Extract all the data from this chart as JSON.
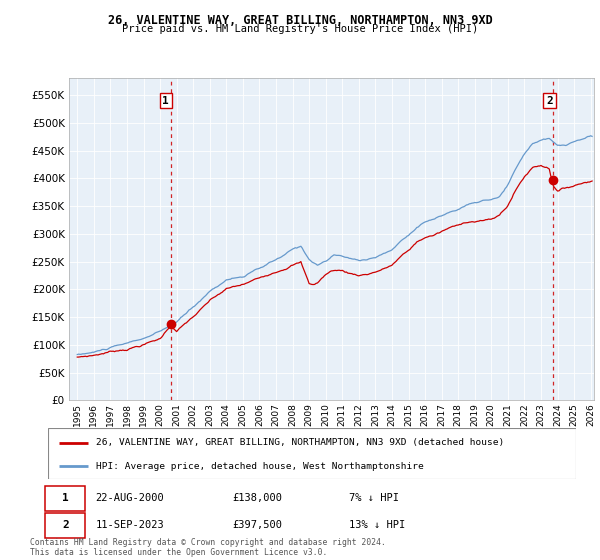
{
  "title": "26, VALENTINE WAY, GREAT BILLING, NORTHAMPTON, NN3 9XD",
  "subtitle": "Price paid vs. HM Land Registry's House Price Index (HPI)",
  "legend_label_red": "26, VALENTINE WAY, GREAT BILLING, NORTHAMPTON, NN3 9XD (detached house)",
  "legend_label_blue": "HPI: Average price, detached house, West Northamptonshire",
  "footnote": "Contains HM Land Registry data © Crown copyright and database right 2024.\nThis data is licensed under the Open Government Licence v3.0.",
  "annotation1_date": "22-AUG-2000",
  "annotation1_price": "£138,000",
  "annotation1_hpi": "7% ↓ HPI",
  "annotation2_date": "11-SEP-2023",
  "annotation2_price": "£397,500",
  "annotation2_hpi": "13% ↓ HPI",
  "red_color": "#cc0000",
  "blue_color": "#6699cc",
  "chart_bg": "#e8f0f8",
  "grid_color": "#ffffff",
  "ylim": [
    0,
    580000
  ],
  "yticks": [
    0,
    50000,
    100000,
    150000,
    200000,
    250000,
    300000,
    350000,
    400000,
    450000,
    500000,
    550000
  ],
  "sale1_x": 2000.644,
  "sale1_y": 138000,
  "sale2_x": 2023.706,
  "sale2_y": 397500,
  "xlim_start": 1994.5,
  "xlim_end": 2026.2,
  "xtick_years": [
    1995,
    1996,
    1997,
    1998,
    1999,
    2000,
    2001,
    2002,
    2003,
    2004,
    2005,
    2006,
    2007,
    2008,
    2009,
    2010,
    2011,
    2012,
    2013,
    2014,
    2015,
    2016,
    2017,
    2018,
    2019,
    2020,
    2021,
    2022,
    2023,
    2024,
    2025,
    2026
  ]
}
